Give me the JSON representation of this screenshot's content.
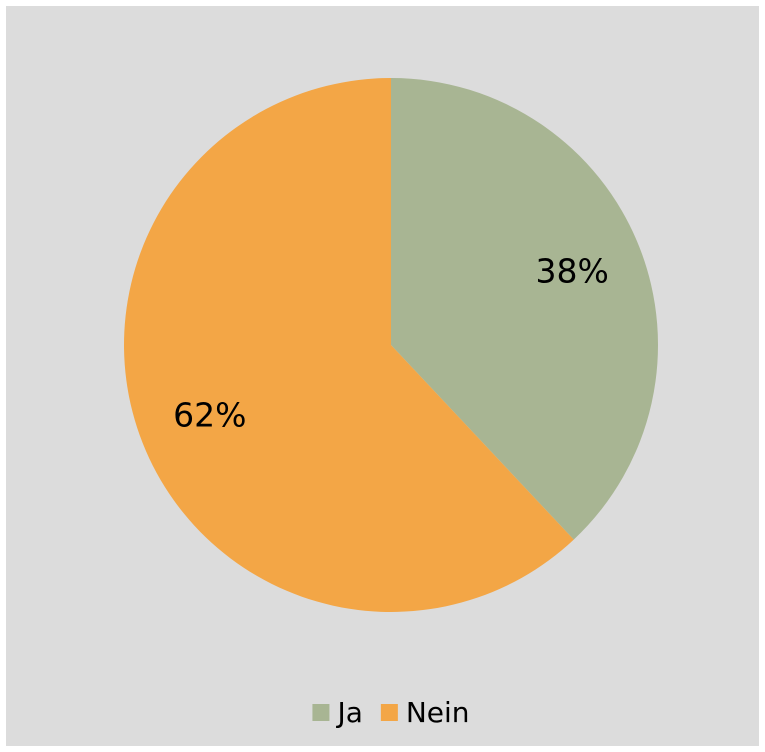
{
  "chart_data": {
    "type": "pie",
    "categories": [
      "Ja",
      "Nein"
    ],
    "values": [
      38,
      62
    ],
    "value_labels": [
      "38%",
      "62%"
    ],
    "colors": [
      "#a8b593",
      "#f3a646"
    ],
    "legend": "bottom"
  }
}
